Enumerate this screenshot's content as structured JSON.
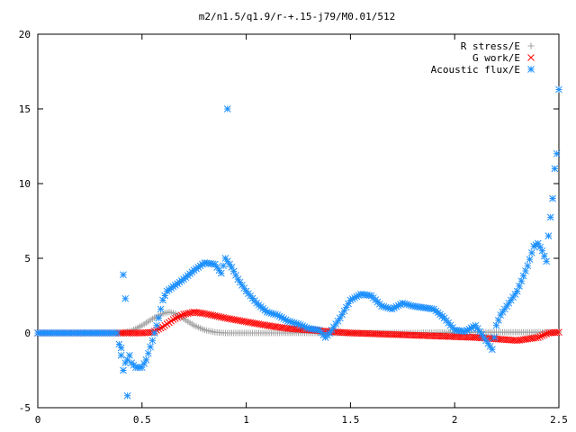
{
  "chart_data": {
    "type": "scatter",
    "title": "m2/n1.5/q1.9/r-+.15-j79/M0.01/512",
    "xlabel": "",
    "ylabel": "",
    "xlim": [
      0,
      2.5
    ],
    "ylim": [
      -5,
      20
    ],
    "xticks": [
      "0",
      "0.5",
      "1",
      "1.5",
      "2",
      "2.5"
    ],
    "yticks": [
      "-5",
      "0",
      "5",
      "10",
      "15",
      "20"
    ],
    "grid": false,
    "legend_position": "top-right",
    "series": [
      {
        "name": "R stress/E",
        "color": "#a0a0a0",
        "marker": "plus",
        "x": [
          0.0,
          0.1,
          0.2,
          0.3,
          0.4,
          0.45,
          0.5,
          0.55,
          0.6,
          0.63,
          0.66,
          0.7,
          0.75,
          0.8,
          0.85,
          0.9,
          1.0,
          1.2,
          1.5,
          1.8,
          2.0,
          2.2,
          2.35,
          2.45,
          2.5
        ],
        "y": [
          0.0,
          0.0,
          0.0,
          0.0,
          0.0,
          0.15,
          0.5,
          0.95,
          1.3,
          1.4,
          1.3,
          0.95,
          0.5,
          0.2,
          0.05,
          0.0,
          0.0,
          0.0,
          0.0,
          0.0,
          0.05,
          0.05,
          0.05,
          0.05,
          0.05
        ]
      },
      {
        "name": "G work/E",
        "color": "#ff0000",
        "marker": "cross",
        "x": [
          0.0,
          0.2,
          0.4,
          0.5,
          0.55,
          0.6,
          0.65,
          0.7,
          0.75,
          0.8,
          0.85,
          0.9,
          1.0,
          1.1,
          1.2,
          1.3,
          1.4,
          1.5,
          1.6,
          1.7,
          1.8,
          1.9,
          2.0,
          2.1,
          2.2,
          2.3,
          2.4,
          2.45,
          2.5
        ],
        "y": [
          0.0,
          0.0,
          0.0,
          0.0,
          0.05,
          0.4,
          0.9,
          1.25,
          1.4,
          1.3,
          1.15,
          1.0,
          0.75,
          0.5,
          0.3,
          0.2,
          0.1,
          0.0,
          -0.05,
          -0.1,
          -0.15,
          -0.2,
          -0.25,
          -0.3,
          -0.4,
          -0.5,
          -0.3,
          0.0,
          0.05
        ]
      },
      {
        "name": "Acoustic flux/E",
        "color": "#1e90ff",
        "marker": "star",
        "x": [
          0.0,
          0.1,
          0.2,
          0.3,
          0.38,
          0.4,
          0.41,
          0.42,
          0.43,
          0.44,
          0.45,
          0.47,
          0.5,
          0.52,
          0.55,
          0.58,
          0.6,
          0.62,
          0.65,
          0.7,
          0.75,
          0.8,
          0.85,
          0.88,
          0.9,
          0.93,
          0.96,
          1.0,
          1.05,
          1.1,
          1.15,
          1.2,
          1.25,
          1.3,
          1.35,
          1.38,
          1.4,
          1.45,
          1.5,
          1.55,
          1.6,
          1.65,
          1.7,
          1.75,
          1.8,
          1.85,
          1.9,
          1.95,
          2.0,
          2.05,
          2.1,
          2.15,
          2.18,
          2.2,
          2.22,
          2.25,
          2.3,
          2.35,
          2.38,
          2.4,
          2.42,
          2.44,
          2.45,
          2.47,
          2.48,
          2.49,
          2.5,
          0.91,
          0.42,
          0.41,
          0.43,
          0.4
        ],
        "y": [
          0.0,
          0.0,
          0.0,
          0.0,
          0.0,
          -1.5,
          -2.5,
          -2.0,
          -1.8,
          -1.5,
          -2.0,
          -2.3,
          -2.3,
          -1.8,
          -0.5,
          1.0,
          2.2,
          2.8,
          3.1,
          3.6,
          4.2,
          4.7,
          4.6,
          4.0,
          5.0,
          4.4,
          3.6,
          2.8,
          2.0,
          1.4,
          1.2,
          0.8,
          0.6,
          0.3,
          0.2,
          -0.3,
          0.0,
          1.0,
          2.2,
          2.6,
          2.5,
          1.8,
          1.6,
          2.0,
          1.8,
          1.7,
          1.6,
          1.0,
          0.2,
          0.1,
          0.5,
          -0.5,
          -1.1,
          0.5,
          1.2,
          1.8,
          2.8,
          4.5,
          5.8,
          6.0,
          5.5,
          4.8,
          6.5,
          9.0,
          11.0,
          12.0,
          16.3,
          15.0,
          2.3,
          3.9,
          -4.2,
          -1.0
        ]
      }
    ]
  }
}
